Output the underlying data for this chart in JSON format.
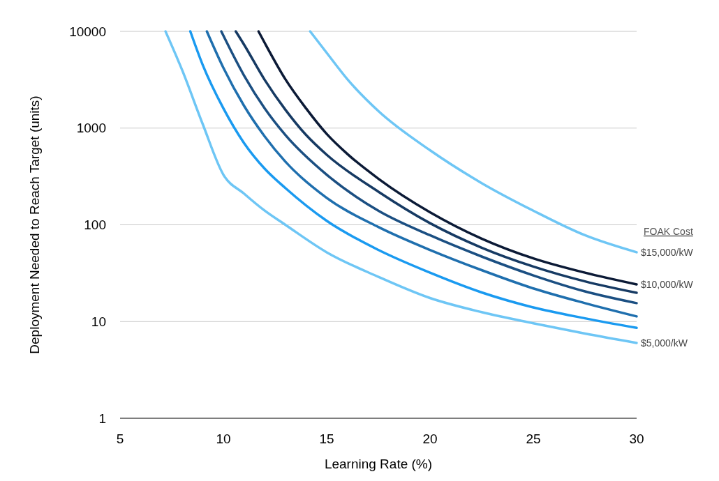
{
  "chart_data": {
    "type": "line",
    "xlabel": "Learning Rate (%)",
    "ylabel": "Deployment Needed to Reach Target (units)",
    "legend_title": "FOAK Cost",
    "log": "y",
    "grid": "y",
    "line_style": "solid",
    "xlim": [
      5,
      30
    ],
    "xticks": [
      5,
      10,
      15,
      20,
      25,
      30
    ],
    "ylim": [
      1,
      10000
    ],
    "yticks": [
      1,
      10,
      100,
      1000,
      10000
    ],
    "series": [
      {
        "name": "$5,000/kW",
        "color": "#6ec6f5",
        "x": [
          7.2,
          8,
          9,
          10,
          11,
          12,
          13,
          15,
          17.5,
          20,
          22.5,
          25,
          27.5,
          30
        ],
        "values": [
          10000,
          4000,
          1100,
          330,
          210,
          140,
          100,
          52,
          29,
          17.5,
          12.5,
          9.6,
          7.5,
          6.0
        ]
      },
      {
        "color": "#1a9af0",
        "x": [
          8.4,
          9,
          10,
          11,
          12,
          13,
          15,
          17.5,
          20,
          22.5,
          25,
          27.5,
          30
        ],
        "values": [
          10000,
          4500,
          1600,
          700,
          380,
          240,
          110,
          55,
          32,
          20,
          14,
          10.8,
          8.6
        ]
      },
      {
        "color": "#1f6fae",
        "x": [
          9.2,
          10,
          11,
          12,
          13,
          15,
          17.5,
          20,
          22.5,
          25,
          27.5,
          30
        ],
        "values": [
          10000,
          4200,
          1700,
          820,
          450,
          190,
          95,
          55,
          34,
          22,
          15.5,
          11.3
        ]
      },
      {
        "color": "#1b4f82",
        "x": [
          9.9,
          11,
          12,
          13,
          15,
          17.5,
          20,
          22.5,
          25,
          27.5,
          30
        ],
        "values": [
          10000,
          3500,
          1600,
          850,
          330,
          140,
          78,
          47,
          30,
          20.5,
          15.5
        ]
      },
      {
        "color": "#163a63",
        "x": [
          10.6,
          11,
          12,
          13,
          14,
          15,
          17.5,
          20,
          22.5,
          25,
          27.5,
          30
        ],
        "values": [
          10000,
          7300,
          3150,
          1550,
          850,
          530,
          220,
          104,
          58,
          37,
          26,
          19.8
        ]
      },
      {
        "name": "$10,000/kW",
        "color": "#0b1a36",
        "x": [
          11.7,
          12,
          13,
          14,
          15,
          16,
          17.5,
          20,
          22.5,
          25,
          27.5,
          30
        ],
        "values": [
          10000,
          7600,
          3200,
          1600,
          870,
          540,
          300,
          135,
          72,
          45,
          32,
          24.2
        ]
      },
      {
        "name": "$15,000/kW",
        "color": "#6ec6f5",
        "x": [
          14.2,
          15,
          16,
          17.5,
          20,
          22.5,
          25,
          27.5,
          30
        ],
        "values": [
          10000,
          6000,
          3200,
          1500,
          590,
          270,
          140,
          78,
          52
        ]
      }
    ]
  }
}
